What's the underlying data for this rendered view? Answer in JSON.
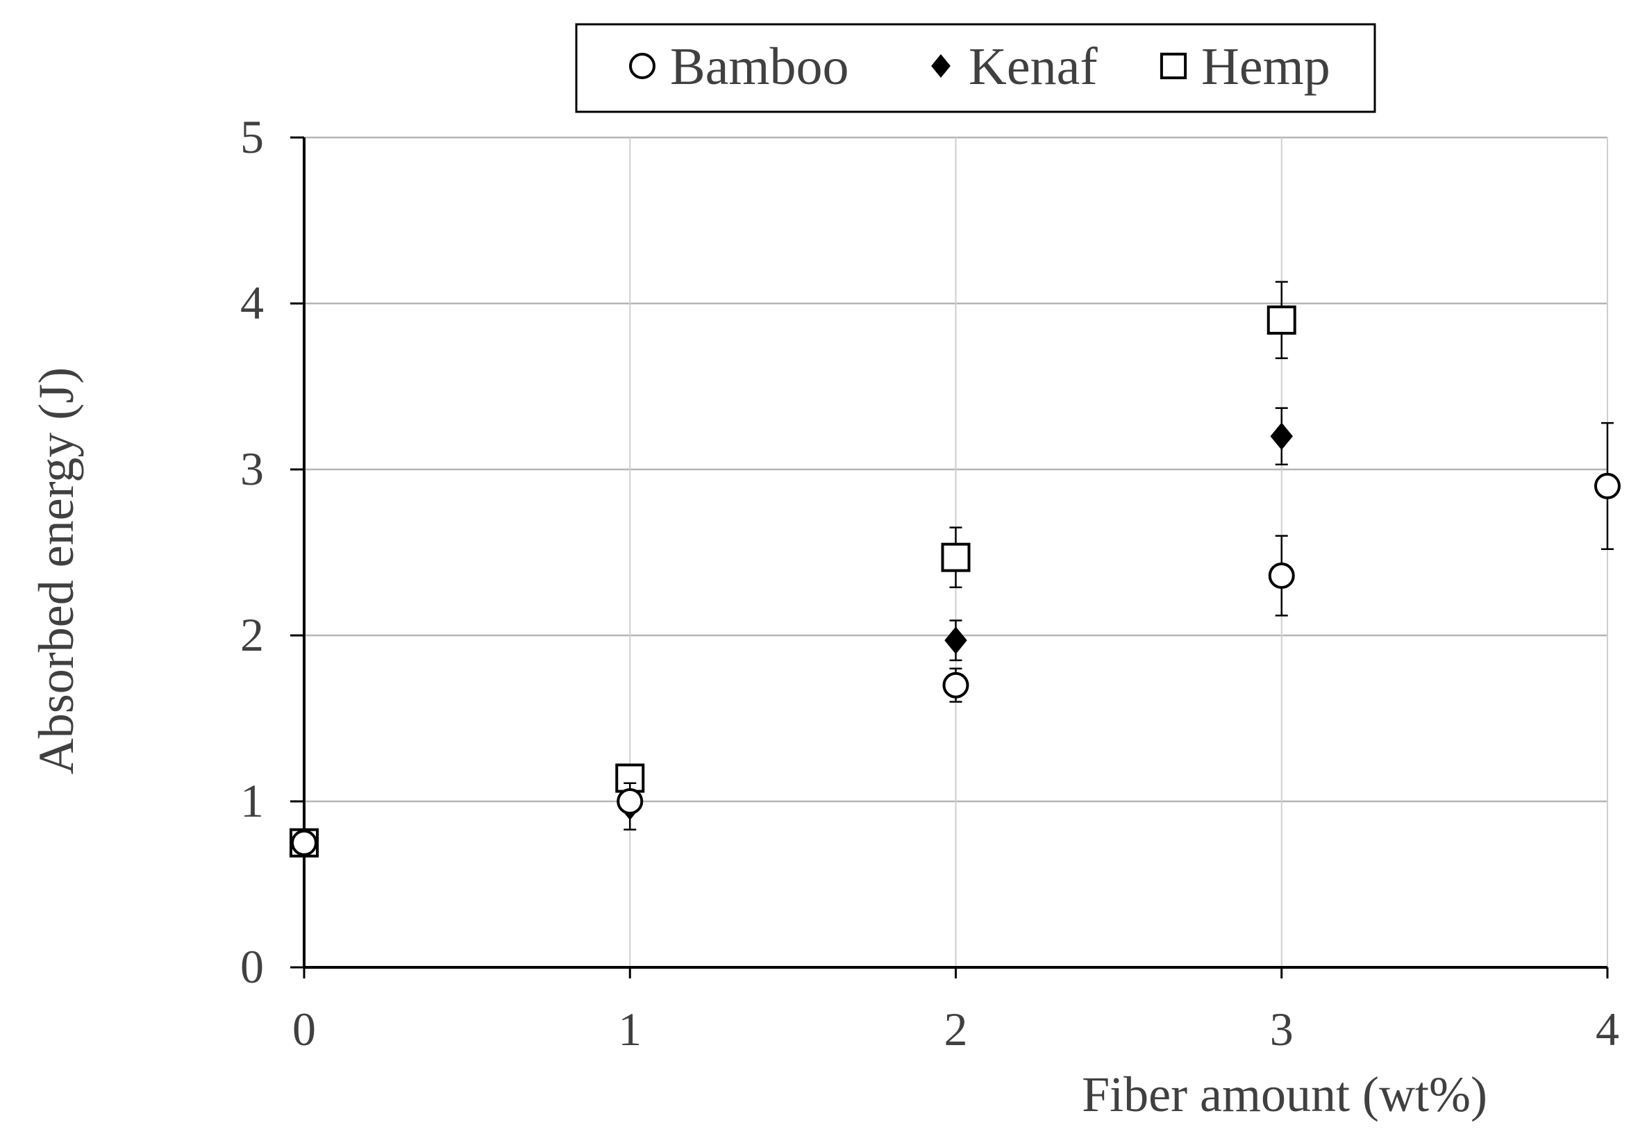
{
  "chart_data": {
    "type": "scatter",
    "xlabel": "Fiber amount (wt%)",
    "ylabel": "Absorbed energy (J)",
    "xlim": [
      0,
      4
    ],
    "ylim": [
      0,
      5
    ],
    "xticks": [
      "0",
      "1",
      "2",
      "3",
      "4"
    ],
    "yticks": [
      "0",
      "1",
      "2",
      "3",
      "4",
      "5"
    ],
    "grid": true,
    "legend_position": "top",
    "series": [
      {
        "name": "Bamboo",
        "marker": "open-circle",
        "color": "#000000",
        "points": [
          {
            "x": 0,
            "y": 0.75,
            "err": 0.05
          },
          {
            "x": 1,
            "y": 1.0,
            "err": 0.06
          },
          {
            "x": 2,
            "y": 1.7,
            "err": 0.1
          },
          {
            "x": 3,
            "y": 2.36,
            "err": 0.24
          },
          {
            "x": 4,
            "y": 2.9,
            "err": 0.38
          }
        ]
      },
      {
        "name": "Kenaf",
        "marker": "filled-diamond",
        "color": "#000000",
        "points": [
          {
            "x": 0,
            "y": 0.76,
            "err": 0.05
          },
          {
            "x": 1,
            "y": 0.97,
            "err": 0.14
          },
          {
            "x": 2,
            "y": 1.97,
            "err": 0.12
          },
          {
            "x": 3,
            "y": 3.2,
            "err": 0.17
          }
        ]
      },
      {
        "name": "Hemp",
        "marker": "open-square",
        "color": "#000000",
        "points": [
          {
            "x": 0,
            "y": 0.75,
            "err": 0.05
          },
          {
            "x": 1,
            "y": 1.14,
            "err": 0.05
          },
          {
            "x": 2,
            "y": 2.47,
            "err": 0.18
          },
          {
            "x": 3,
            "y": 3.9,
            "err": 0.23
          }
        ]
      }
    ]
  }
}
